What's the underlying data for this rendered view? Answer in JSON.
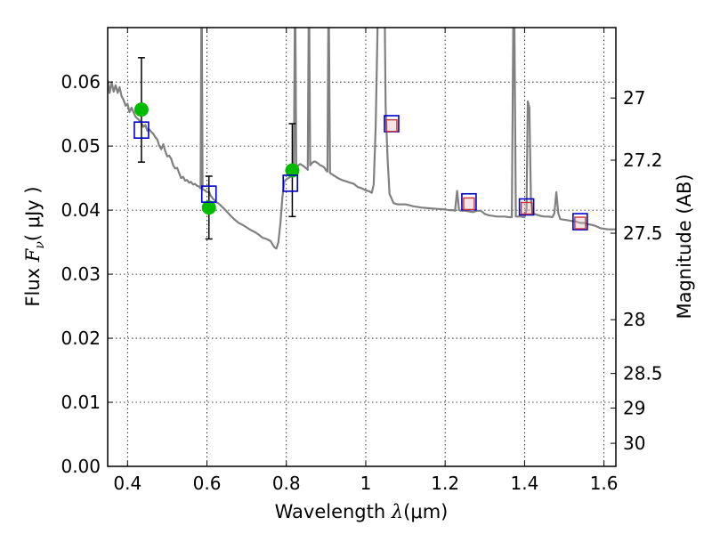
{
  "chart_data": {
    "type": "scatter",
    "title": "",
    "xlabel": "Wavelength  λ (μm)",
    "xlabel_parts": {
      "prefix": "Wavelength  ",
      "symbol": "λ",
      "unit": "(μm)"
    },
    "ylabel": "Flux  Fν  ( μJy )",
    "ylabel_parts": {
      "prefix": "Flux  ",
      "symbol": "F",
      "sub": "ν",
      "unit": "( μJy )"
    },
    "y2label": "Magnitude (AB)",
    "xlim": [
      0.35,
      1.63
    ],
    "ylim": [
      0.0,
      0.0685
    ],
    "grid": true,
    "x_ticks": [
      0.4,
      0.6,
      0.8,
      1.0,
      1.2,
      1.4,
      1.6
    ],
    "x_tick_labels": [
      "0.4",
      "0.6",
      "0.8",
      "1",
      "1.2",
      "1.4",
      "1.6"
    ],
    "y_ticks": [
      0.0,
      0.01,
      0.02,
      0.03,
      0.04,
      0.05,
      0.06
    ],
    "y_tick_labels": [
      "0.00",
      "0.01",
      "0.02",
      "0.03",
      "0.04",
      "0.05",
      "0.06"
    ],
    "y2_ticks": [
      {
        "label": "27",
        "flux": 0.0575
      },
      {
        "label": "27.2",
        "flux": 0.0478
      },
      {
        "label": "27.5",
        "flux": 0.0364
      },
      {
        "label": "28",
        "flux": 0.0229
      },
      {
        "label": "28.5",
        "flux": 0.0145
      },
      {
        "label": "29",
        "flux": 0.0091
      },
      {
        "label": "30",
        "flux": 0.0036
      }
    ],
    "series": [
      {
        "kind": "model_spectrum",
        "color": "#808080",
        "points": [
          [
            0.35,
            0.0603
          ],
          [
            0.355,
            0.0583
          ],
          [
            0.36,
            0.06
          ],
          [
            0.365,
            0.0585
          ],
          [
            0.37,
            0.0595
          ],
          [
            0.375,
            0.0583
          ],
          [
            0.38,
            0.0592
          ],
          [
            0.385,
            0.0578
          ],
          [
            0.39,
            0.0572
          ],
          [
            0.395,
            0.0563
          ],
          [
            0.4,
            0.0566
          ],
          [
            0.405,
            0.0553
          ],
          [
            0.41,
            0.056
          ],
          [
            0.415,
            0.0553
          ],
          [
            0.42,
            0.0546
          ],
          [
            0.425,
            0.0543
          ],
          [
            0.43,
            0.054
          ],
          [
            0.435,
            0.0536
          ],
          [
            0.44,
            0.053
          ],
          [
            0.445,
            0.0533
          ],
          [
            0.45,
            0.0524
          ],
          [
            0.455,
            0.0526
          ],
          [
            0.46,
            0.0522
          ],
          [
            0.465,
            0.0519
          ],
          [
            0.47,
            0.0514
          ],
          [
            0.475,
            0.051
          ],
          [
            0.48,
            0.05
          ],
          [
            0.485,
            0.0495
          ],
          [
            0.49,
            0.0503
          ],
          [
            0.495,
            0.0492
          ],
          [
            0.5,
            0.0484
          ],
          [
            0.505,
            0.0485
          ],
          [
            0.51,
            0.048
          ],
          [
            0.515,
            0.047
          ],
          [
            0.52,
            0.0465
          ],
          [
            0.525,
            0.0466
          ],
          [
            0.53,
            0.0458
          ],
          [
            0.535,
            0.045
          ],
          [
            0.54,
            0.0452
          ],
          [
            0.545,
            0.0446
          ],
          [
            0.55,
            0.0447
          ],
          [
            0.555,
            0.0443
          ],
          [
            0.56,
            0.0444
          ],
          [
            0.565,
            0.044
          ],
          [
            0.57,
            0.0441
          ],
          [
            0.575,
            0.0438
          ],
          [
            0.58,
            0.0437
          ],
          [
            0.584,
            0.0434
          ],
          [
            0.5858,
            0.069
          ],
          [
            0.5872,
            0.069
          ],
          [
            0.589,
            0.0432
          ],
          [
            0.595,
            0.0431
          ],
          [
            0.6,
            0.0428
          ],
          [
            0.605,
            0.0429
          ],
          [
            0.61,
            0.0422
          ],
          [
            0.615,
            0.0418
          ],
          [
            0.62,
            0.0415
          ],
          [
            0.625,
            0.0412
          ],
          [
            0.63,
            0.041
          ],
          [
            0.64,
            0.0404
          ],
          [
            0.65,
            0.0398
          ],
          [
            0.66,
            0.0391
          ],
          [
            0.67,
            0.0385
          ],
          [
            0.68,
            0.038
          ],
          [
            0.69,
            0.0377
          ],
          [
            0.7,
            0.0373
          ],
          [
            0.71,
            0.0369
          ],
          [
            0.72,
            0.0366
          ],
          [
            0.73,
            0.0362
          ],
          [
            0.74,
            0.0357
          ],
          [
            0.75,
            0.0355
          ],
          [
            0.76,
            0.0352
          ],
          [
            0.765,
            0.0347
          ],
          [
            0.77,
            0.0342
          ],
          [
            0.775,
            0.034
          ],
          [
            0.78,
            0.035
          ],
          [
            0.785,
            0.038
          ],
          [
            0.79,
            0.042
          ],
          [
            0.795,
            0.0445
          ],
          [
            0.8,
            0.0448
          ],
          [
            0.805,
            0.045
          ],
          [
            0.81,
            0.0452
          ],
          [
            0.815,
            0.0455
          ],
          [
            0.819,
            0.0458
          ],
          [
            0.8212,
            0.069
          ],
          [
            0.8228,
            0.069
          ],
          [
            0.825,
            0.0462
          ],
          [
            0.83,
            0.047
          ],
          [
            0.835,
            0.0472
          ],
          [
            0.84,
            0.047
          ],
          [
            0.845,
            0.0468
          ],
          [
            0.85,
            0.0465
          ],
          [
            0.854,
            0.0463
          ],
          [
            0.8562,
            0.069
          ],
          [
            0.8578,
            0.069
          ],
          [
            0.86,
            0.047
          ],
          [
            0.865,
            0.0474
          ],
          [
            0.87,
            0.0476
          ],
          [
            0.875,
            0.0475
          ],
          [
            0.88,
            0.0473
          ],
          [
            0.885,
            0.047
          ],
          [
            0.89,
            0.0469
          ],
          [
            0.895,
            0.0467
          ],
          [
            0.9,
            0.0462
          ],
          [
            0.9035,
            0.046
          ],
          [
            0.9057,
            0.069
          ],
          [
            0.9073,
            0.069
          ],
          [
            0.91,
            0.0458
          ],
          [
            0.92,
            0.0454
          ],
          [
            0.93,
            0.045
          ],
          [
            0.94,
            0.0447
          ],
          [
            0.95,
            0.0445
          ],
          [
            0.96,
            0.0443
          ],
          [
            0.97,
            0.0441
          ],
          [
            0.98,
            0.0436
          ],
          [
            0.99,
            0.0434
          ],
          [
            1.0,
            0.0431
          ],
          [
            1.01,
            0.0429
          ],
          [
            1.015,
            0.0427
          ],
          [
            1.02,
            0.044
          ],
          [
            1.025,
            0.053
          ],
          [
            1.03,
            0.069
          ],
          [
            1.048,
            0.069
          ],
          [
            1.05,
            0.056
          ],
          [
            1.055,
            0.048
          ],
          [
            1.06,
            0.0425
          ],
          [
            1.065,
            0.0418
          ],
          [
            1.07,
            0.0411
          ],
          [
            1.08,
            0.0409
          ],
          [
            1.1,
            0.0409
          ],
          [
            1.12,
            0.0406
          ],
          [
            1.14,
            0.0404
          ],
          [
            1.16,
            0.0403
          ],
          [
            1.18,
            0.0402
          ],
          [
            1.2,
            0.0401
          ],
          [
            1.21,
            0.04
          ],
          [
            1.22,
            0.04
          ],
          [
            1.225,
            0.0399
          ],
          [
            1.23,
            0.043
          ],
          [
            1.235,
            0.04
          ],
          [
            1.24,
            0.0399
          ],
          [
            1.25,
            0.0399
          ],
          [
            1.26,
            0.0398
          ],
          [
            1.27,
            0.0397
          ],
          [
            1.28,
            0.0399
          ],
          [
            1.29,
            0.0399
          ],
          [
            1.3,
            0.0394
          ],
          [
            1.31,
            0.0392
          ],
          [
            1.32,
            0.0391
          ],
          [
            1.33,
            0.039
          ],
          [
            1.34,
            0.039
          ],
          [
            1.35,
            0.039
          ],
          [
            1.36,
            0.0389
          ],
          [
            1.368,
            0.0389
          ],
          [
            1.3715,
            0.069
          ],
          [
            1.3745,
            0.069
          ],
          [
            1.378,
            0.039
          ],
          [
            1.39,
            0.039
          ],
          [
            1.4,
            0.0389
          ],
          [
            1.405,
            0.04
          ],
          [
            1.408,
            0.057
          ],
          [
            1.412,
            0.056
          ],
          [
            1.416,
            0.042
          ],
          [
            1.42,
            0.0395
          ],
          [
            1.43,
            0.0393
          ],
          [
            1.44,
            0.0391
          ],
          [
            1.45,
            0.039
          ],
          [
            1.46,
            0.039
          ],
          [
            1.47,
            0.0389
          ],
          [
            1.475,
            0.0395
          ],
          [
            1.48,
            0.0428
          ],
          [
            1.485,
            0.0395
          ],
          [
            1.49,
            0.0386
          ],
          [
            1.5,
            0.0385
          ],
          [
            1.51,
            0.0384
          ],
          [
            1.52,
            0.0383
          ],
          [
            1.53,
            0.0382
          ],
          [
            1.54,
            0.038
          ],
          [
            1.55,
            0.038
          ],
          [
            1.56,
            0.0378
          ],
          [
            1.57,
            0.0377
          ],
          [
            1.58,
            0.0375
          ],
          [
            1.59,
            0.0372
          ],
          [
            1.6,
            0.0371
          ],
          [
            1.61,
            0.037
          ],
          [
            1.62,
            0.037
          ],
          [
            1.63,
            0.037
          ]
        ]
      },
      {
        "kind": "observed",
        "color": "#00bb00",
        "marker": "circle",
        "points": [
          {
            "x": 0.435,
            "y": 0.0557,
            "yerr_low": 0.0475,
            "yerr_high": 0.0638
          },
          {
            "x": 0.605,
            "y": 0.0404,
            "yerr_low": 0.0355,
            "yerr_high": 0.0453
          },
          {
            "x": 0.815,
            "y": 0.0462,
            "yerr_low": 0.039,
            "yerr_high": 0.0535
          }
        ]
      },
      {
        "kind": "model_band",
        "color": "#0000cc",
        "marker": "square",
        "points": [
          {
            "x": 0.435,
            "y": 0.0525
          },
          {
            "x": 0.605,
            "y": 0.0425
          },
          {
            "x": 0.81,
            "y": 0.0442
          },
          {
            "x": 1.065,
            "y": 0.0535
          },
          {
            "x": 1.26,
            "y": 0.0413
          },
          {
            "x": 1.405,
            "y": 0.0405
          },
          {
            "x": 1.54,
            "y": 0.0382
          }
        ]
      },
      {
        "kind": "predicted_band",
        "color": "#cc3333",
        "marker": "square",
        "points": [
          {
            "x": 1.065,
            "y": 0.0532
          },
          {
            "x": 1.26,
            "y": 0.041
          },
          {
            "x": 1.405,
            "y": 0.0403
          },
          {
            "x": 1.54,
            "y": 0.038
          }
        ]
      }
    ]
  }
}
